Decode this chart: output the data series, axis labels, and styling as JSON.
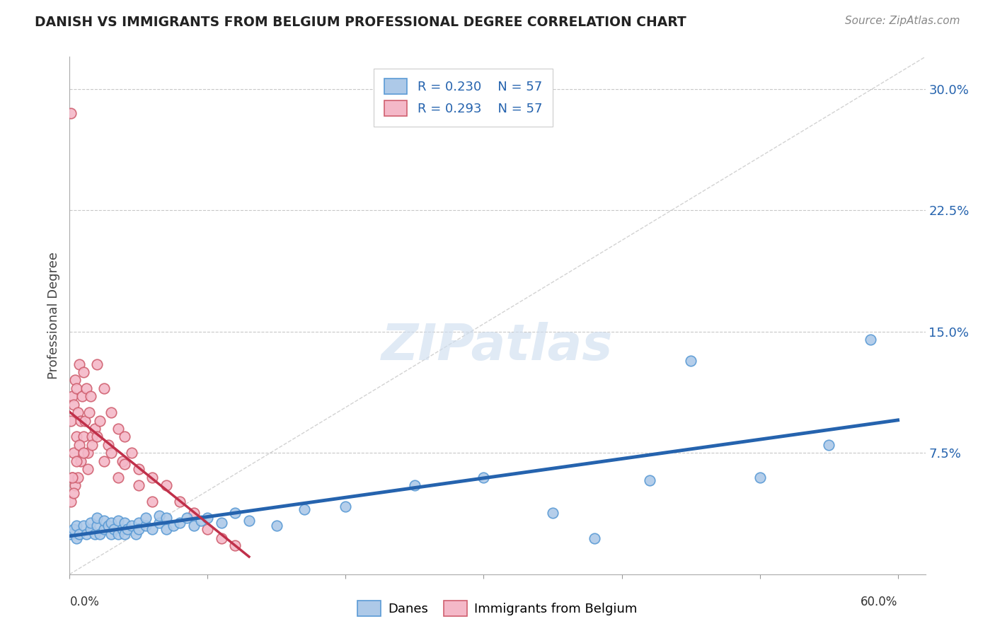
{
  "title": "DANISH VS IMMIGRANTS FROM BELGIUM PROFESSIONAL DEGREE CORRELATION CHART",
  "source": "Source: ZipAtlas.com",
  "ylabel": "Professional Degree",
  "xlim": [
    0.0,
    0.62
  ],
  "ylim": [
    0.0,
    0.32
  ],
  "legend_r_danes": "R = 0.230",
  "legend_n_danes": "N = 57",
  "legend_r_belgium": "R = 0.293",
  "legend_n_belgium": "N = 57",
  "danes_color": "#adc9e8",
  "danes_edge_color": "#5b9bd5",
  "belgium_color": "#f4b8c8",
  "belgium_edge_color": "#d06070",
  "trend_danes_color": "#2563ae",
  "trend_belgium_color": "#c0304a",
  "watermark_color": "#d0dff0",
  "background_color": "#ffffff",
  "grid_color": "#c8c8c8",
  "danes_x": [
    0.001,
    0.003,
    0.005,
    0.005,
    0.007,
    0.01,
    0.012,
    0.015,
    0.015,
    0.018,
    0.02,
    0.02,
    0.022,
    0.025,
    0.025,
    0.028,
    0.03,
    0.03,
    0.032,
    0.035,
    0.035,
    0.038,
    0.04,
    0.04,
    0.042,
    0.045,
    0.048,
    0.05,
    0.05,
    0.055,
    0.055,
    0.06,
    0.065,
    0.065,
    0.07,
    0.07,
    0.075,
    0.08,
    0.085,
    0.09,
    0.095,
    0.1,
    0.11,
    0.12,
    0.13,
    0.15,
    0.17,
    0.2,
    0.25,
    0.3,
    0.35,
    0.38,
    0.42,
    0.45,
    0.5,
    0.55,
    0.58
  ],
  "danes_y": [
    0.025,
    0.028,
    0.022,
    0.03,
    0.025,
    0.03,
    0.025,
    0.028,
    0.032,
    0.025,
    0.03,
    0.035,
    0.025,
    0.028,
    0.033,
    0.03,
    0.025,
    0.032,
    0.028,
    0.025,
    0.033,
    0.028,
    0.025,
    0.032,
    0.028,
    0.03,
    0.025,
    0.032,
    0.028,
    0.03,
    0.035,
    0.028,
    0.032,
    0.036,
    0.028,
    0.035,
    0.03,
    0.032,
    0.035,
    0.03,
    0.033,
    0.035,
    0.032,
    0.038,
    0.033,
    0.03,
    0.04,
    0.042,
    0.055,
    0.06,
    0.038,
    0.022,
    0.058,
    0.132,
    0.06,
    0.08,
    0.145
  ],
  "belgium_x": [
    0.001,
    0.001,
    0.002,
    0.002,
    0.003,
    0.003,
    0.004,
    0.004,
    0.005,
    0.005,
    0.006,
    0.006,
    0.007,
    0.008,
    0.008,
    0.009,
    0.01,
    0.01,
    0.011,
    0.012,
    0.013,
    0.014,
    0.015,
    0.016,
    0.018,
    0.02,
    0.022,
    0.025,
    0.028,
    0.03,
    0.035,
    0.038,
    0.04,
    0.045,
    0.05,
    0.06,
    0.07,
    0.08,
    0.09,
    0.1,
    0.11,
    0.12,
    0.001,
    0.002,
    0.003,
    0.005,
    0.007,
    0.01,
    0.013,
    0.016,
    0.02,
    0.025,
    0.03,
    0.035,
    0.04,
    0.05,
    0.06
  ],
  "belgium_y": [
    0.285,
    0.095,
    0.11,
    0.06,
    0.105,
    0.075,
    0.12,
    0.055,
    0.115,
    0.085,
    0.1,
    0.06,
    0.13,
    0.095,
    0.07,
    0.11,
    0.125,
    0.085,
    0.095,
    0.115,
    0.075,
    0.1,
    0.11,
    0.085,
    0.09,
    0.13,
    0.095,
    0.115,
    0.08,
    0.1,
    0.09,
    0.07,
    0.085,
    0.075,
    0.065,
    0.06,
    0.055,
    0.045,
    0.038,
    0.028,
    0.022,
    0.018,
    0.045,
    0.06,
    0.05,
    0.07,
    0.08,
    0.075,
    0.065,
    0.08,
    0.085,
    0.07,
    0.075,
    0.06,
    0.068,
    0.055,
    0.045
  ],
  "dashed_line_x": [
    0.0,
    0.62
  ],
  "dashed_line_y": [
    0.0,
    0.32
  ],
  "pink_trend_x_start": 0.0,
  "pink_trend_x_end": 0.13,
  "blue_trend_x_start": 0.0,
  "blue_trend_x_end": 0.6
}
